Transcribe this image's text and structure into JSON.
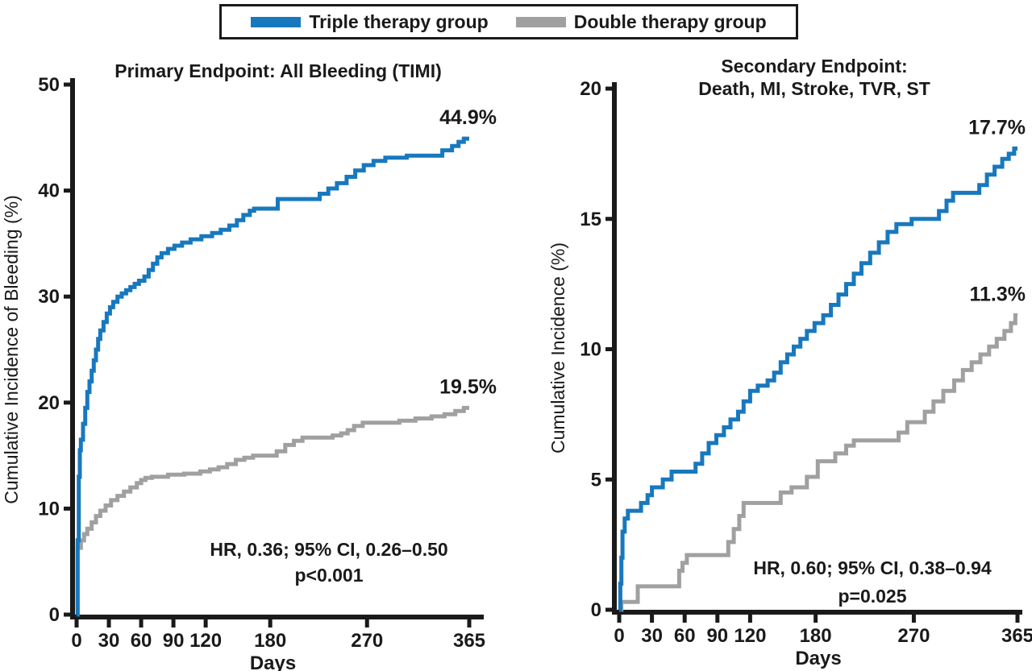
{
  "legend": {
    "items": [
      {
        "label": "Triple therapy group",
        "color": "#1878be"
      },
      {
        "label": "Double therapy group",
        "color": "#a0a0a0"
      }
    ]
  },
  "colors": {
    "triple": "#1878be",
    "double": "#a0a0a0",
    "axis": "#1a1a1a"
  },
  "chart_data": [
    {
      "type": "line",
      "subtype": "kaplan-meier-step",
      "title_lines": [
        "Primary Endpoint: All Bleeding (TIMI)"
      ],
      "xlabel": "Days",
      "ylabel": "Cumulative Incidence of Bleeding (%)",
      "xlim": [
        0,
        365
      ],
      "ylim": [
        0,
        50
      ],
      "xticks": [
        0,
        30,
        60,
        90,
        120,
        180,
        270,
        365
      ],
      "yticks": [
        0,
        10,
        20,
        30,
        40,
        50
      ],
      "grid": false,
      "annotation_lines": [
        "HR, 0.36; 95% CI, 0.26–0.50",
        "p<0.001"
      ],
      "series": [
        {
          "name": "Triple therapy group",
          "color": "#1878be",
          "end_label": "44.9%",
          "points": [
            [
              0,
              0
            ],
            [
              1,
              7
            ],
            [
              2,
              13
            ],
            [
              3,
              15.5
            ],
            [
              4,
              16.5
            ],
            [
              6,
              18
            ],
            [
              8,
              19.5
            ],
            [
              10,
              21
            ],
            [
              12,
              22
            ],
            [
              14,
              23
            ],
            [
              16,
              24
            ],
            [
              18,
              25
            ],
            [
              20,
              26
            ],
            [
              22,
              26.8
            ],
            [
              25,
              27.6
            ],
            [
              28,
              28.4
            ],
            [
              31,
              29
            ],
            [
              34,
              29.5
            ],
            [
              38,
              30
            ],
            [
              42,
              30.3
            ],
            [
              46,
              30.6
            ],
            [
              50,
              30.9
            ],
            [
              54,
              31.2
            ],
            [
              58,
              31.5
            ],
            [
              63,
              31.9
            ],
            [
              67,
              32.5
            ],
            [
              71,
              33.1
            ],
            [
              75,
              33.7
            ],
            [
              79,
              34.1
            ],
            [
              85,
              34.5
            ],
            [
              91,
              34.8
            ],
            [
              98,
              35.1
            ],
            [
              106,
              35.4
            ],
            [
              116,
              35.7
            ],
            [
              126,
              36.0
            ],
            [
              134,
              36.3
            ],
            [
              142,
              36.7
            ],
            [
              149,
              37.2
            ],
            [
              155,
              37.7
            ],
            [
              161,
              38.1
            ],
            [
              165,
              38.3
            ],
            [
              187,
              39.2
            ],
            [
              226,
              39.7
            ],
            [
              234,
              40.2
            ],
            [
              242,
              40.7
            ],
            [
              251,
              41.3
            ],
            [
              259,
              41.9
            ],
            [
              267,
              42.4
            ],
            [
              276,
              42.8
            ],
            [
              287,
              43.1
            ],
            [
              307,
              43.3
            ],
            [
              340,
              43.8
            ],
            [
              349,
              44.2
            ],
            [
              355,
              44.6
            ],
            [
              360,
              44.9
            ],
            [
              365,
              44.9
            ]
          ]
        },
        {
          "name": "Double therapy group",
          "color": "#a0a0a0",
          "end_label": "19.5%",
          "points": [
            [
              0,
              0
            ],
            [
              1,
              6.3
            ],
            [
              4,
              7.0
            ],
            [
              7,
              7.6
            ],
            [
              10,
              8.1
            ],
            [
              14,
              8.7
            ],
            [
              18,
              9.3
            ],
            [
              22,
              9.8
            ],
            [
              27,
              10.3
            ],
            [
              32,
              10.8
            ],
            [
              38,
              11.2
            ],
            [
              44,
              11.6
            ],
            [
              50,
              12.0
            ],
            [
              56,
              12.4
            ],
            [
              60,
              12.7
            ],
            [
              64,
              12.9
            ],
            [
              70,
              13.0
            ],
            [
              85,
              13.2
            ],
            [
              100,
              13.3
            ],
            [
              115,
              13.5
            ],
            [
              124,
              13.7
            ],
            [
              132,
              13.9
            ],
            [
              140,
              14.2
            ],
            [
              148,
              14.6
            ],
            [
              156,
              14.8
            ],
            [
              164,
              15.0
            ],
            [
              186,
              15.4
            ],
            [
              194,
              16.0
            ],
            [
              202,
              16.4
            ],
            [
              210,
              16.7
            ],
            [
              238,
              16.9
            ],
            [
              246,
              17.1
            ],
            [
              252,
              17.4
            ],
            [
              258,
              17.8
            ],
            [
              266,
              18.1
            ],
            [
              300,
              18.3
            ],
            [
              315,
              18.5
            ],
            [
              330,
              18.7
            ],
            [
              342,
              18.9
            ],
            [
              352,
              19.2
            ],
            [
              360,
              19.5
            ],
            [
              365,
              19.5
            ]
          ]
        }
      ]
    },
    {
      "type": "line",
      "subtype": "kaplan-meier-step",
      "title_lines": [
        "Secondary Endpoint:",
        "Death, MI, Stroke, TVR, ST"
      ],
      "xlabel": "Days",
      "ylabel": "Cumulative Incidence (%)",
      "xlim": [
        0,
        365
      ],
      "ylim": [
        0,
        20
      ],
      "xticks": [
        0,
        30,
        60,
        90,
        120,
        180,
        270,
        365
      ],
      "yticks": [
        0,
        5,
        10,
        15,
        20
      ],
      "grid": false,
      "annotation_lines": [
        "HR, 0.60; 95% CI, 0.38–0.94",
        "p=0.025"
      ],
      "series": [
        {
          "name": "Triple therapy group",
          "color": "#1878be",
          "end_label": "17.7%",
          "points": [
            [
              0,
              0
            ],
            [
              1,
              1.0
            ],
            [
              2,
              2.0
            ],
            [
              3,
              3.0
            ],
            [
              5,
              3.5
            ],
            [
              8,
              3.8
            ],
            [
              20,
              4.1
            ],
            [
              26,
              4.4
            ],
            [
              30,
              4.7
            ],
            [
              40,
              5.0
            ],
            [
              48,
              5.3
            ],
            [
              70,
              5.6
            ],
            [
              76,
              6.0
            ],
            [
              82,
              6.4
            ],
            [
              89,
              6.7
            ],
            [
              96,
              7.0
            ],
            [
              102,
              7.3
            ],
            [
              109,
              7.6
            ],
            [
              114,
              8.0
            ],
            [
              120,
              8.4
            ],
            [
              127,
              8.6
            ],
            [
              136,
              8.8
            ],
            [
              142,
              9.1
            ],
            [
              148,
              9.5
            ],
            [
              154,
              9.8
            ],
            [
              160,
              10.1
            ],
            [
              166,
              10.4
            ],
            [
              172,
              10.7
            ],
            [
              179,
              11.0
            ],
            [
              187,
              11.3
            ],
            [
              194,
              11.7
            ],
            [
              201,
              12.1
            ],
            [
              208,
              12.5
            ],
            [
              215,
              12.9
            ],
            [
              222,
              13.3
            ],
            [
              230,
              13.7
            ],
            [
              238,
              14.1
            ],
            [
              246,
              14.5
            ],
            [
              254,
              14.8
            ],
            [
              268,
              15.0
            ],
            [
              293,
              15.3
            ],
            [
              300,
              15.7
            ],
            [
              306,
              16.0
            ],
            [
              330,
              16.3
            ],
            [
              337,
              16.7
            ],
            [
              344,
              17.0
            ],
            [
              351,
              17.3
            ],
            [
              357,
              17.5
            ],
            [
              362,
              17.7
            ],
            [
              365,
              17.7
            ]
          ]
        },
        {
          "name": "Double therapy group",
          "color": "#a0a0a0",
          "end_label": "11.3%",
          "points": [
            [
              0,
              0
            ],
            [
              2,
              0.3
            ],
            [
              17,
              0.9
            ],
            [
              55,
              1.5
            ],
            [
              58,
              1.8
            ],
            [
              62,
              2.1
            ],
            [
              100,
              2.6
            ],
            [
              105,
              3.1
            ],
            [
              110,
              3.6
            ],
            [
              114,
              4.1
            ],
            [
              148,
              4.5
            ],
            [
              158,
              4.7
            ],
            [
              172,
              5.1
            ],
            [
              182,
              5.7
            ],
            [
              198,
              6.0
            ],
            [
              208,
              6.3
            ],
            [
              215,
              6.5
            ],
            [
              256,
              6.8
            ],
            [
              264,
              7.2
            ],
            [
              280,
              7.6
            ],
            [
              288,
              8.0
            ],
            [
              297,
              8.4
            ],
            [
              307,
              8.8
            ],
            [
              315,
              9.2
            ],
            [
              323,
              9.5
            ],
            [
              331,
              9.8
            ],
            [
              339,
              10.1
            ],
            [
              346,
              10.4
            ],
            [
              353,
              10.7
            ],
            [
              359,
              11.0
            ],
            [
              363,
              11.3
            ],
            [
              365,
              11.3
            ]
          ]
        }
      ]
    }
  ]
}
